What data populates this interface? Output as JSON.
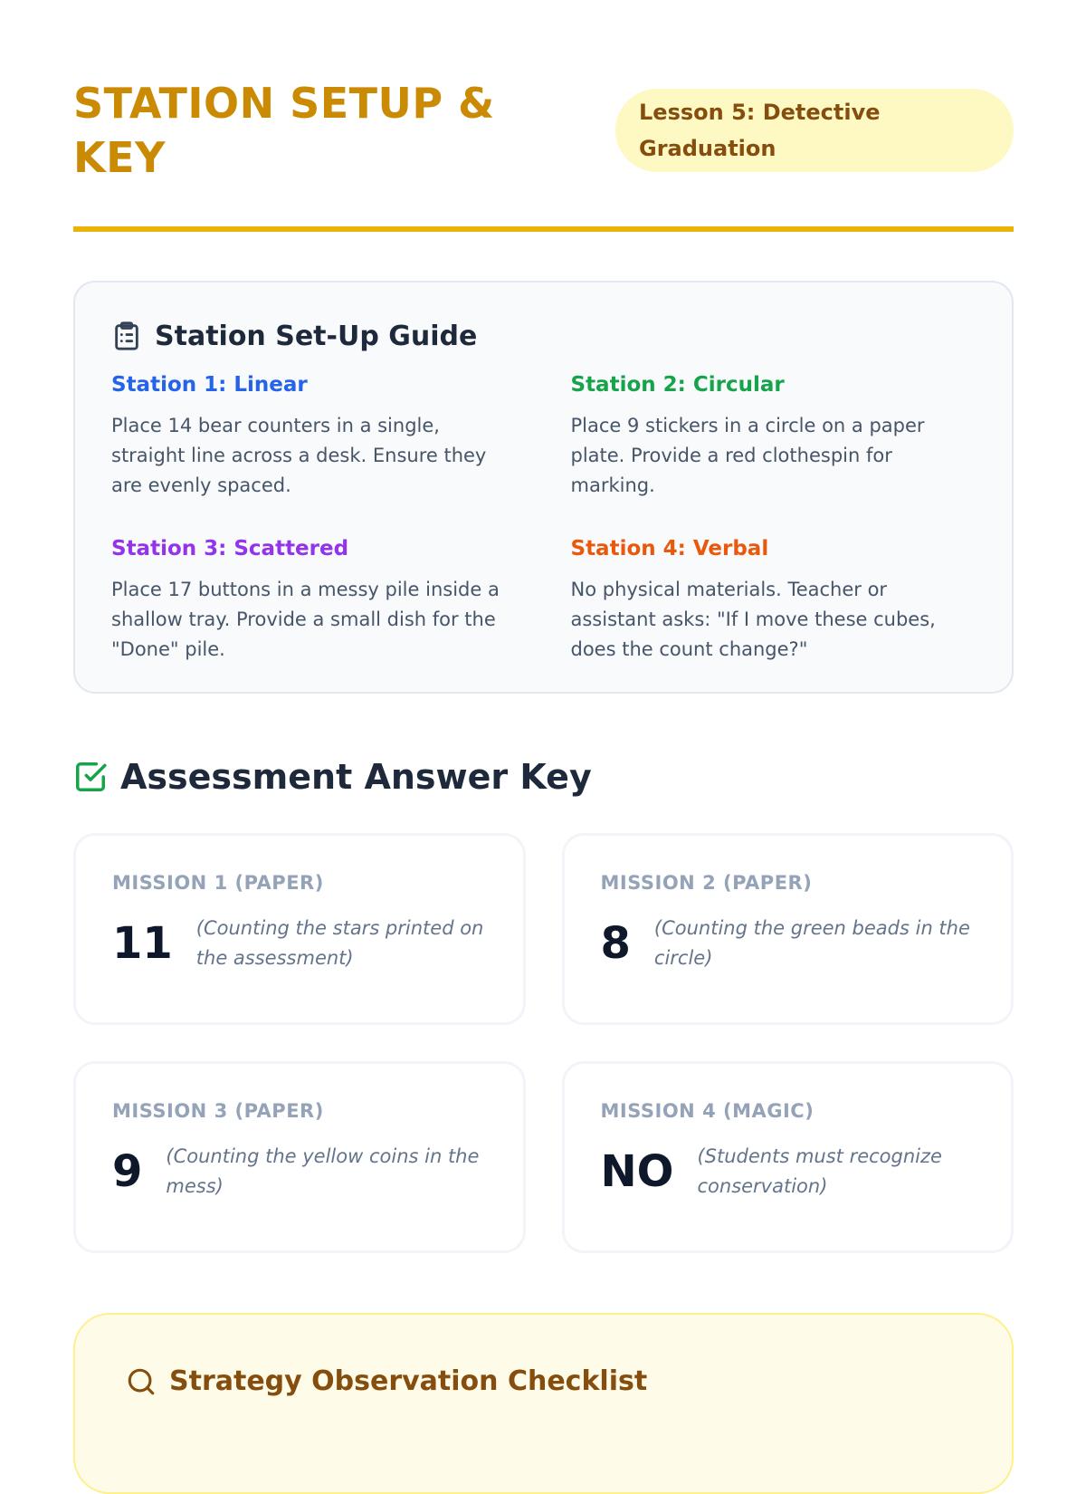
{
  "header": {
    "title": "STATION SETUP & KEY",
    "badge": "Lesson 5: Detective Graduation"
  },
  "guide": {
    "title": "Station Set-Up Guide",
    "icon": "clipboard-icon",
    "stations": [
      {
        "title": "Station 1: Linear",
        "color": "#2563eb",
        "text": "Place 14 bear counters in a single, straight line across a desk. Ensure they are evenly spaced."
      },
      {
        "title": "Station 2: Circular",
        "color": "#16a34a",
        "text": "Place 9 stickers in a circle on a paper plate. Provide a red clothespin for marking."
      },
      {
        "title": "Station 3: Scattered",
        "color": "#9333ea",
        "text": "Place 17 buttons in a messy pile inside a shallow tray. Provide a small dish for the \"Done\" pile."
      },
      {
        "title": "Station 4: Verbal",
        "color": "#ea580c",
        "text": "No physical materials. Teacher or assistant asks: \"If I move these cubes, does the count change?\""
      }
    ]
  },
  "answer_key": {
    "title": "Assessment Answer Key",
    "icon": "check-square-icon",
    "missions": [
      {
        "label": "MISSION 1 (PAPER)",
        "answer": "11",
        "note": "(Counting the stars printed on the assessment)"
      },
      {
        "label": "MISSION 2 (PAPER)",
        "answer": "8",
        "note": "(Counting the green beads in the circle)"
      },
      {
        "label": "MISSION 3 (PAPER)",
        "answer": "9",
        "note": "(Counting the yellow coins in the mess)"
      },
      {
        "label": "MISSION 4 (MAGIC)",
        "answer": "NO",
        "note": "(Students must recognize conservation)"
      }
    ]
  },
  "observation": {
    "title": "Strategy Observation Checklist",
    "icon": "search-icon"
  }
}
